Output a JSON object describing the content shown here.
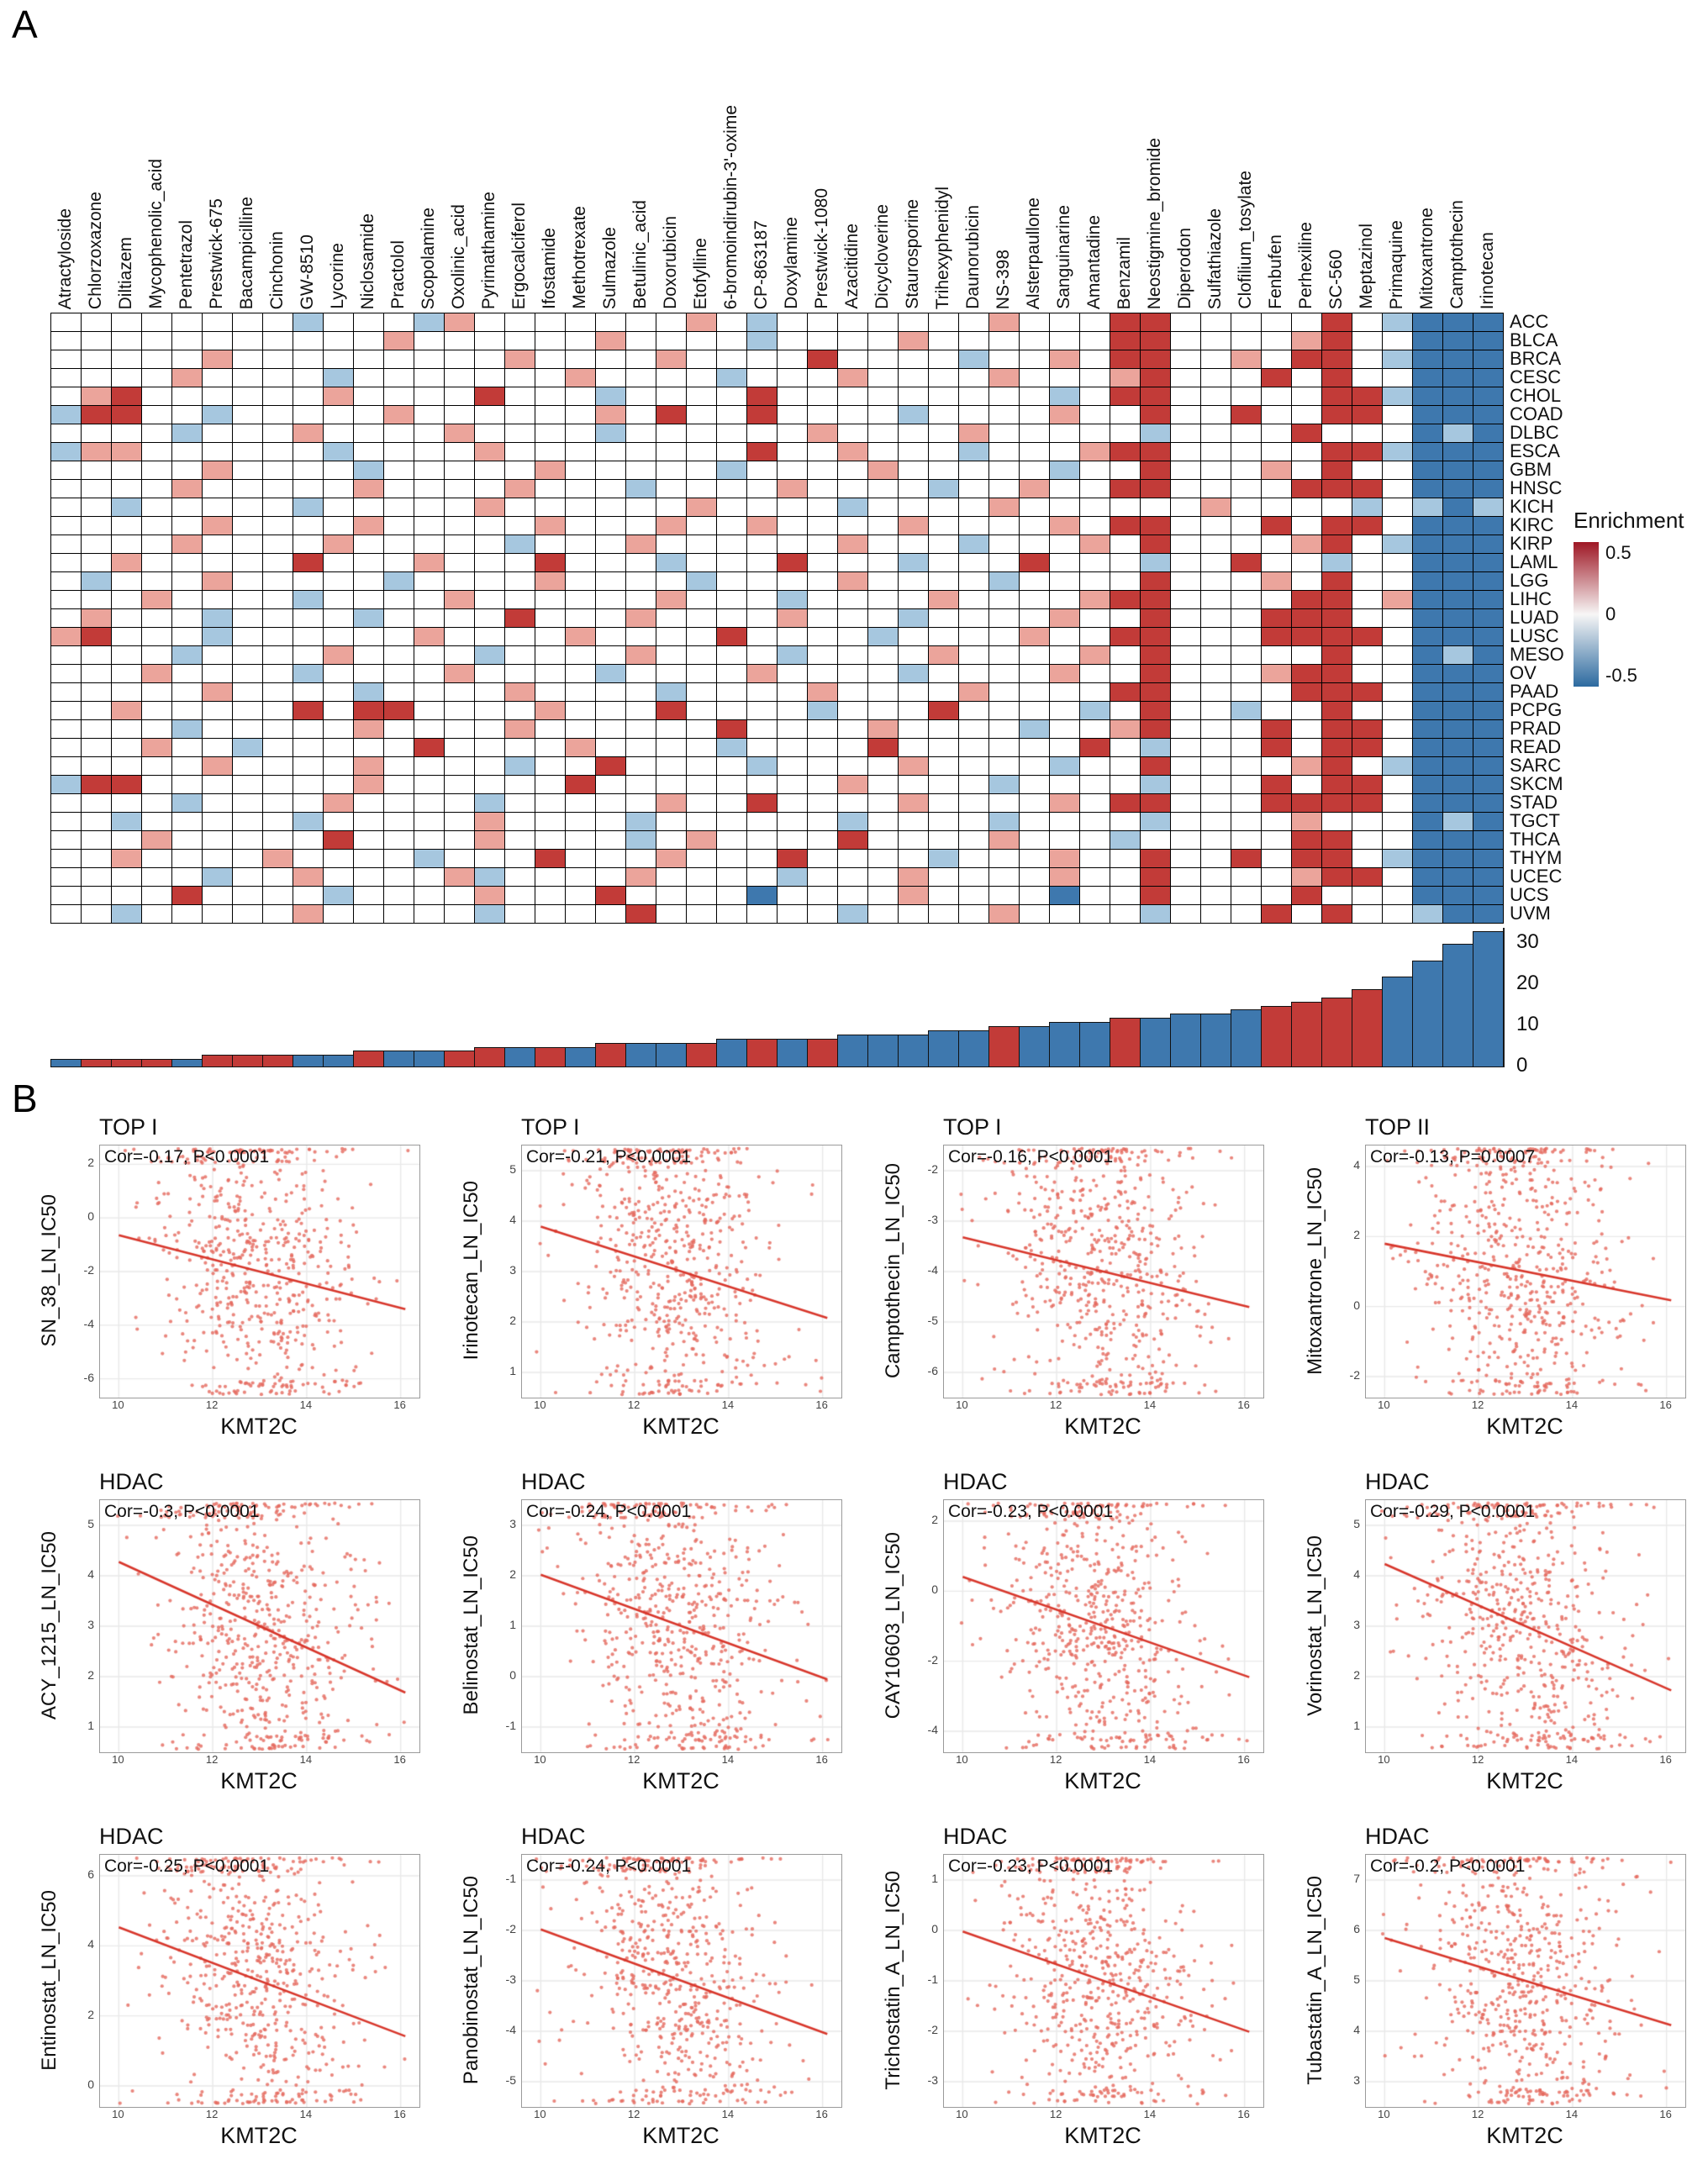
{
  "panels": {
    "a": "A",
    "b": "B"
  },
  "chart_data": [
    {
      "type": "heatmap",
      "x_labels": [
        "Atractyloside",
        "Chlorzoxazone",
        "Diltiazem",
        "Mycophenolic_acid",
        "Pentetrazol",
        "Prestwick-675",
        "Bacampicilline",
        "Cinchonin",
        "GW-8510",
        "Lycorine",
        "Niclosamide",
        "Practolol",
        "Scopolamine",
        "Oxolinic_acid",
        "Pyrimathamine",
        "Ergocalciferol",
        "Ifostamide",
        "Methotrexate",
        "Sulmazole",
        "Betulinic_acid",
        "Doxorubicin",
        "Etofylline",
        "6-bromoindirubin-3'-oxime",
        "CP-863187",
        "Doxylamine",
        "Prestwick-1080",
        "Azacitidine",
        "Dicycloverine",
        "Staurosporine",
        "Trihexyphenidyl",
        "Daunorubicin",
        "NS-398",
        "Alsterpaullone",
        "Sanguinarine",
        "Amantadine",
        "Benzamil",
        "Neostigmine_bromide",
        "Diperodon",
        "Sulfathiazole",
        "Clofilium_tosylate",
        "Fenbufen",
        "Perhexiline",
        "SC-560",
        "Meptazinol",
        "Primaquine",
        "Mitoxantrone",
        "Camptothecin",
        "Irinotecan"
      ],
      "y_labels": [
        "ACC",
        "BLCA",
        "BRCA",
        "CESC",
        "CHOL",
        "COAD",
        "DLBC",
        "ESCA",
        "GBM",
        "HNSC",
        "KICH",
        "KIRC",
        "KIRP",
        "LAML",
        "LGG",
        "LIHC",
        "LUAD",
        "LUSC",
        "MESO",
        "OV",
        "PAAD",
        "PCPG",
        "PRAD",
        "READ",
        "SARC",
        "SKCM",
        "STAD",
        "TGCT",
        "THCA",
        "THYM",
        "UCEC",
        "UCS",
        "UVM"
      ],
      "value_map": {
        "R": 0.45,
        "r": 0.2,
        ".": 0.0,
        "b": -0.2,
        "B": -0.45
      },
      "palette": {
        "R": "#c23b38",
        "r": "#eba49b",
        ".": "#ffffff",
        "b": "#a6c7df",
        "B": "#3e78ae"
      },
      "rows": [
        "........b...br.......r.b.......r...RR.....R.bBBB",
        "...........r......r....b....r......RR....rR..BBB",
        ".....r.........r....r....R....b..r.RR..r.RR.bBBB",
        "....r....b.......r....b...r....r...rR...R.R..BBB",
        ".rR......r....R...b....R.........b.RR.....RRbBBB",
        "bRR..b.....r......r.R..R....b....r..R..R..RR.BBB",
        "....b...r....r....b......r....r.....b....R...BbB",
        "brr......b....r........R..r...b...rRR.....RRbBBB",
        ".....r....b.....r.....b....r.....b..R...r.R..BBB",
        "....r.....r....r...b....r....b..r..RR....RRR.BBB",
        "..b.....b.....r......r....b....r......r....b.bBb",
        ".....r....r.....r...r..r....r....r.RR...R.RR.BBB",
        "....r....r.....b...r......r...b...r.R....rR.bBBB",
        "..r.....R...r...R...b...R...b...R...b..R..b..BBB",
        ".b...r.....b....r....b....r....b....R...r.R..BBB",
        "...r....b....r......r...b....r....rRR....RR.rBBB",
        ".r...b....b....R...r....r...b....r..R...RRR..BBB",
        "rR...b......r....r....R....b....r..RR...RRRR.BBB",
        "....b....r....b....r....b....r....r.R.....R..BbB",
        "...r....b....r....b....r....b....r..R...rRR..BBB",
        ".....r....b....r....b....r....r....RR....RRR.BBB",
        "..r.....R.RR....r...R....b...R....b.R..b..R..BBB",
        "....b.....r....r......R....r....b..rR...R.RR.BBB",
        "...r..b.....R....r....b....R......R.b...R.RR.BBB",
        ".....r....r....b..R....b....r....b..R....rR.bBBB",
        "bRR.......r......R........r....b....b...R.RR.BBB",
        "....b....r....b.....r..R....r....r.RR...RRRR.BBB",
        "..b.....b.....r....b......b....b....b....r...BbB",
        "...r.....R....r....b.r....R....r...b.....RR..BBB",
        "..r....r....b...R...r...R....b...r..R..R.RR.bBBB",
        ".....b..r....rb....r....b...r....r..R....rRR.BBB",
        "....R....b....r...R....B....r....B..R....R...BBB",
        "..b.....r.....b....R......b....r....b...R.R..bBB"
      ],
      "legend": {
        "title": "Enrichment",
        "ticks": [
          "0.5",
          "0",
          "-0.5"
        ],
        "gradient": [
          "#9e1724",
          "#f7f6f6",
          "#2c6aa0"
        ]
      }
    },
    {
      "type": "bar",
      "values": [
        2,
        2,
        2,
        2,
        2,
        3,
        3,
        3,
        3,
        3,
        4,
        4,
        4,
        4,
        5,
        5,
        5,
        5,
        6,
        6,
        6,
        6,
        7,
        7,
        7,
        7,
        8,
        8,
        8,
        9,
        9,
        10,
        10,
        11,
        11,
        12,
        12,
        13,
        13,
        14,
        15,
        16,
        17,
        19,
        22,
        26,
        30,
        33
      ],
      "bar_colors": "brrrbrrrbbrbbrrbrbrbbrbrbrbbbbbrbbbrbbbbrrrrbbbb",
      "palette": {
        "r": "#c23b38",
        "b": "#3e78ae"
      },
      "y_ticks": [
        0,
        10,
        20,
        30
      ]
    },
    {
      "type": "scatter",
      "x_label": "KMT2C",
      "x_ticks": [
        10,
        12,
        14,
        16
      ],
      "x_range": [
        9.6,
        16.4
      ],
      "dot_color": "#e5695e",
      "line_color": "#d8372c",
      "plots": [
        {
          "group": "TOP I",
          "y_label": "SN_38_LN_IC50",
          "annotation": "Cor=-0.17, P<0.0001",
          "cor": -0.17,
          "y_ticks": [
            -6,
            -4,
            -2,
            0,
            2
          ]
        },
        {
          "group": "TOP I",
          "y_label": "Irinotecan_LN_IC50",
          "annotation": "Cor=-0.21, P<0.0001",
          "cor": -0.21,
          "y_ticks": [
            1,
            2,
            3,
            4,
            5
          ]
        },
        {
          "group": "TOP I",
          "y_label": "Camptothecin_LN_IC50",
          "annotation": "Cor=-0.16, P<0.0001",
          "cor": -0.16,
          "y_ticks": [
            -6,
            -5,
            -4,
            -3,
            -2
          ]
        },
        {
          "group": "TOP II",
          "y_label": "Mitoxantrone_LN_IC50",
          "annotation": "Cor=-0.13, P=0.0007",
          "cor": -0.13,
          "y_ticks": [
            -2,
            0,
            2,
            4
          ]
        },
        {
          "group": "HDAC",
          "y_label": "ACY_1215_LN_IC50",
          "annotation": "Cor=-0.3, P<0.0001",
          "cor": -0.3,
          "y_ticks": [
            1,
            2,
            3,
            4,
            5
          ]
        },
        {
          "group": "HDAC",
          "y_label": "Belinostat_LN_IC50",
          "annotation": "Cor=-0.24, P<0.0001",
          "cor": -0.24,
          "y_ticks": [
            -1,
            0,
            1,
            2,
            3
          ]
        },
        {
          "group": "HDAC",
          "y_label": "CAY10603_LN_IC50",
          "annotation": "Cor=-0.23, P<0.0001",
          "cor": -0.23,
          "y_ticks": [
            -4,
            -2,
            0,
            2
          ]
        },
        {
          "group": "HDAC",
          "y_label": "Vorinostat_LN_IC50",
          "annotation": "Cor=-0.29, P<0.0001",
          "cor": -0.29,
          "y_ticks": [
            1,
            2,
            3,
            4,
            5
          ]
        },
        {
          "group": "HDAC",
          "y_label": "Entinostat_LN_IC50",
          "annotation": "Cor=-0.25, P<0.0001",
          "cor": -0.25,
          "y_ticks": [
            0,
            2,
            4,
            6
          ]
        },
        {
          "group": "HDAC",
          "y_label": "Panobinostat_LN_IC50",
          "annotation": "Cor=-0.24, P<0.0001",
          "cor": -0.24,
          "y_ticks": [
            -5,
            -4,
            -3,
            -2,
            -1
          ]
        },
        {
          "group": "HDAC",
          "y_label": "Trichostatin_A_LN_IC50",
          "annotation": "Cor=-0.23, P<0.0001",
          "cor": -0.23,
          "y_ticks": [
            -3,
            -2,
            -1,
            0,
            1
          ]
        },
        {
          "group": "HDAC",
          "y_label": "Tubastatin_A_LN_IC50",
          "annotation": "Cor=-0.2, P<0.0001",
          "cor": -0.2,
          "y_ticks": [
            3,
            4,
            5,
            6,
            7
          ]
        }
      ]
    }
  ]
}
